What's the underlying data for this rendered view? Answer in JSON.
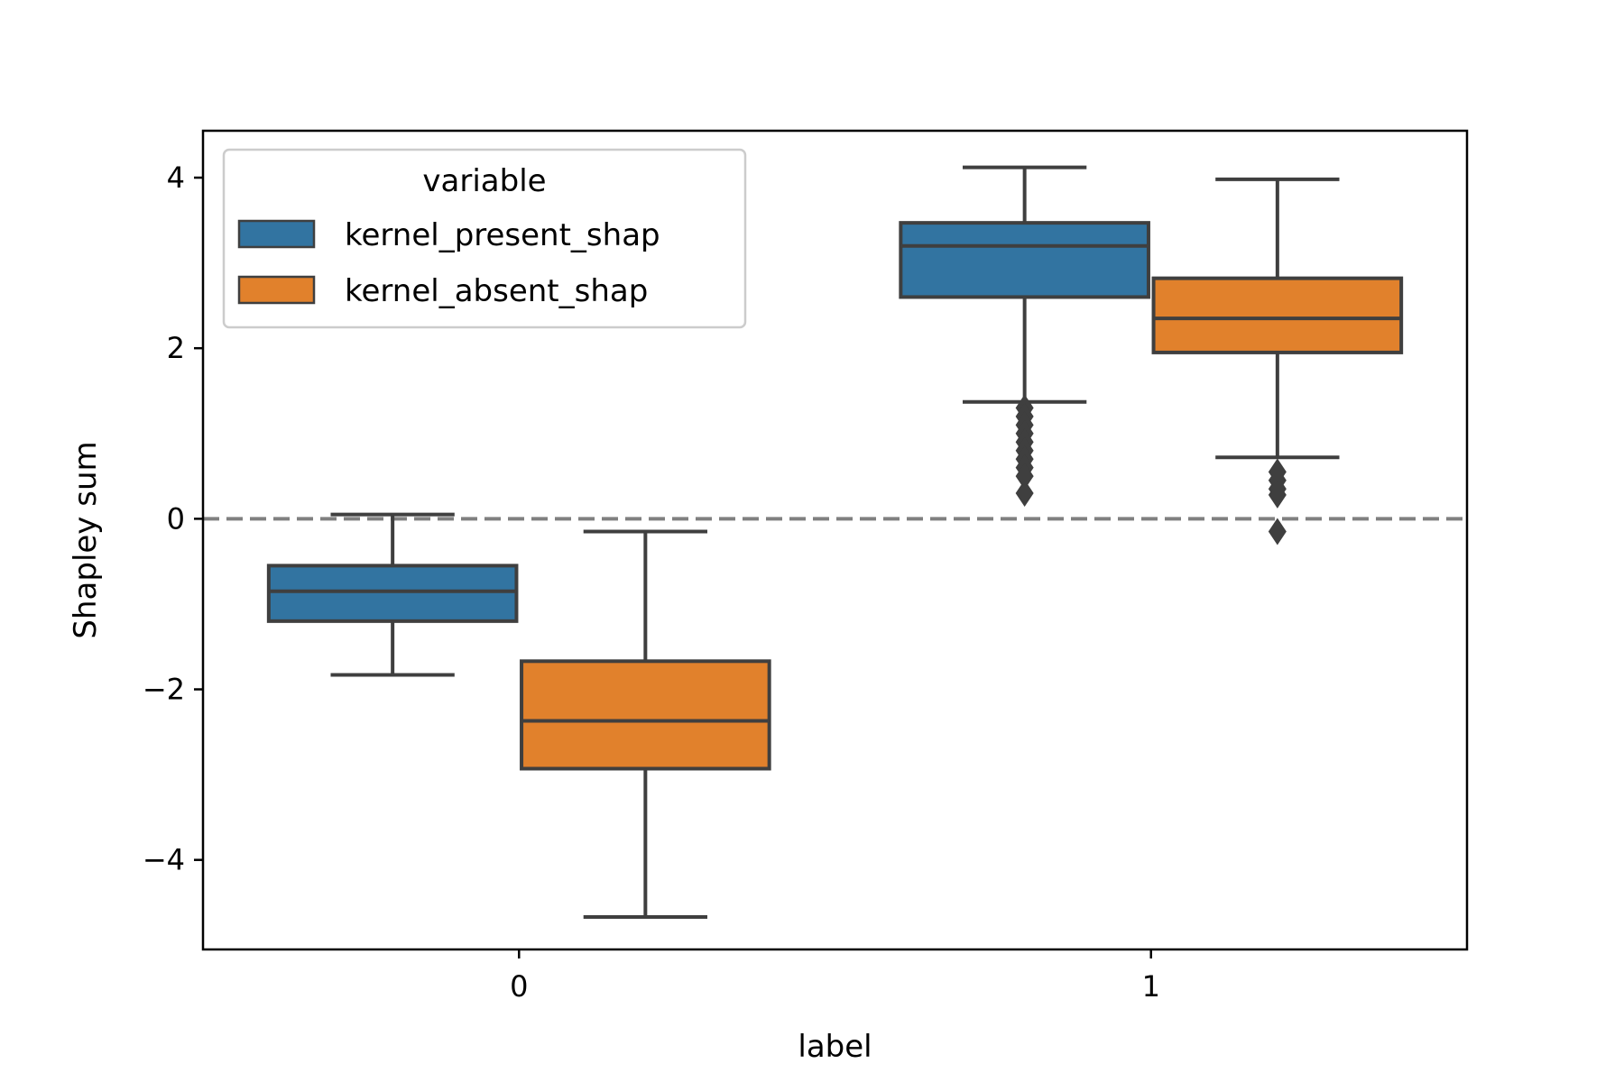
{
  "chart_data": {
    "type": "box",
    "title": "",
    "xlabel": "label",
    "ylabel": "Shapley sum",
    "categories": [
      "0",
      "1"
    ],
    "yticks": [
      {
        "value": 4,
        "label": "4"
      },
      {
        "value": 2,
        "label": "2"
      },
      {
        "value": 0,
        "label": "0"
      },
      {
        "value": -2,
        "label": "−2"
      },
      {
        "value": -4,
        "label": "−4"
      }
    ],
    "ylim": [
      -5.05,
      4.55
    ],
    "reference_line": {
      "y": 0,
      "style": "dashed",
      "color": "#808080"
    },
    "legend": {
      "title": "variable",
      "placement": "upper-left"
    },
    "series": [
      {
        "name": "kernel_present_shap",
        "color": "#3274a1",
        "boxes": [
          {
            "category": "0",
            "whisker_low": -1.83,
            "q1": -1.2,
            "median": -0.85,
            "q3": -0.55,
            "whisker_high": 0.05,
            "outliers": []
          },
          {
            "category": "1",
            "whisker_low": 1.37,
            "q1": 2.6,
            "median": 3.2,
            "q3": 3.47,
            "whisker_high": 4.12,
            "outliers": [
              1.3,
              1.2,
              1.1,
              1.0,
              0.9,
              0.8,
              0.7,
              0.6,
              0.5,
              0.3
            ]
          }
        ]
      },
      {
        "name": "kernel_absent_shap",
        "color": "#e1812c",
        "boxes": [
          {
            "category": "0",
            "whisker_low": -4.67,
            "q1": -2.93,
            "median": -2.37,
            "q3": -1.67,
            "whisker_high": -0.15,
            "outliers": []
          },
          {
            "category": "1",
            "whisker_low": 0.72,
            "q1": 1.95,
            "median": 2.35,
            "q3": 2.82,
            "whisker_high": 3.98,
            "outliers": [
              0.55,
              0.45,
              0.35,
              0.28,
              -0.15
            ]
          }
        ]
      }
    ]
  }
}
